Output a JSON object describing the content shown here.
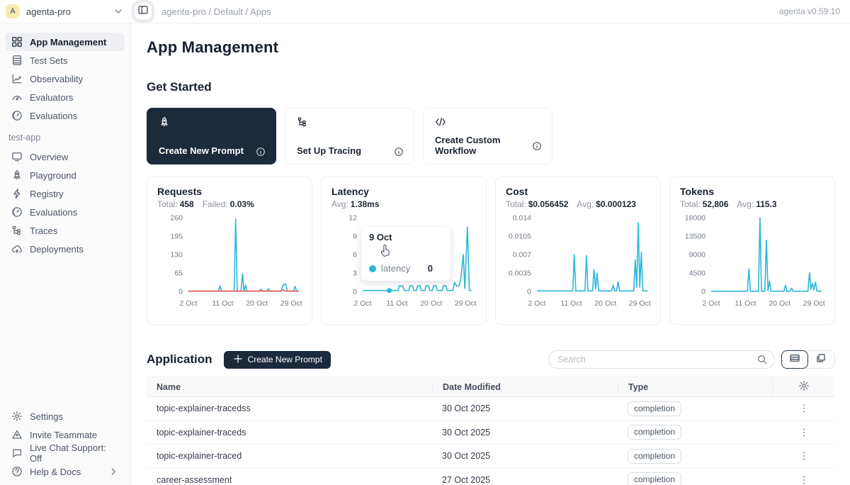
{
  "colors": {
    "accent_dark": "#1b2b3b",
    "line_blue": "#2bb7d9",
    "line_red": "#f4564e",
    "avatar_bg": "#f6ecae"
  },
  "header": {
    "avatar_letter": "A",
    "workspace": "agenta-pro",
    "breadcrumb": "agenta-pro / Default / Apps",
    "version": "agenta v0.59.10"
  },
  "sidebar": {
    "main_items": [
      {
        "label": "App Management",
        "icon": "grid-icon",
        "selected": true
      },
      {
        "label": "Test Sets",
        "icon": "table-icon"
      },
      {
        "label": "Observability",
        "icon": "chart-line-icon"
      },
      {
        "label": "Evaluators",
        "icon": "gauge-icon"
      },
      {
        "label": "Evaluations",
        "icon": "speedometer-icon"
      }
    ],
    "project_label": "test-app",
    "project_items": [
      {
        "label": "Overview",
        "icon": "monitor-icon"
      },
      {
        "label": "Playground",
        "icon": "rocket-icon"
      },
      {
        "label": "Registry",
        "icon": "zap-icon"
      },
      {
        "label": "Evaluations",
        "icon": "speedometer-icon"
      },
      {
        "label": "Traces",
        "icon": "trace-tree-icon"
      },
      {
        "label": "Deployments",
        "icon": "cloud-upload-icon"
      }
    ],
    "footer_items": [
      {
        "label": "Settings",
        "icon": "gear-icon"
      },
      {
        "label": "Invite Teammate",
        "icon": "invite-icon"
      },
      {
        "label": "Live Chat Support: Off",
        "icon": "chat-icon"
      },
      {
        "label": "Help & Docs",
        "icon": "help-circle-icon",
        "chevron": true
      }
    ]
  },
  "main": {
    "page_title": "App Management",
    "get_started": {
      "title": "Get Started",
      "cards": [
        {
          "label": "Create New Prompt",
          "icon": "rocket-icon",
          "variant": "dark"
        },
        {
          "label": "Set Up Tracing",
          "icon": "trace-tree-icon",
          "variant": "light"
        },
        {
          "label": "Create Custom Workflow",
          "icon": "code-icon",
          "variant": "light"
        }
      ]
    },
    "application": {
      "title": "Application",
      "create_button_label": "Create New Prompt",
      "search_placeholder": "Search",
      "view_toggle": [
        "table-view",
        "card-view"
      ],
      "table": {
        "columns": [
          "Name",
          "Date Modified",
          "Type"
        ],
        "rows": [
          {
            "name": "topic-explainer-tracedss",
            "date": "30 Oct 2025",
            "type": "completion"
          },
          {
            "name": "topic-explainer-traceds",
            "date": "30 Oct 2025",
            "type": "completion"
          },
          {
            "name": "topic-explainer-traced",
            "date": "30 Oct 2025",
            "type": "completion"
          },
          {
            "name": "career-assessment",
            "date": "27 Oct 2025",
            "type": "completion"
          }
        ]
      }
    }
  },
  "chart_data": [
    {
      "type": "line",
      "title": "Requests",
      "stats": [
        {
          "label": "Total:",
          "value": "458"
        },
        {
          "label": "Failed:",
          "value": "0.03%"
        }
      ],
      "xlim": [
        0,
        29
      ],
      "ylim": [
        0,
        260
      ],
      "yticks": [
        0,
        65,
        130,
        195,
        260
      ],
      "xticks": [
        {
          "label": "2 Oct",
          "x": 0
        },
        {
          "label": "11 Oct",
          "x": 9
        },
        {
          "label": "20 Oct",
          "x": 18
        },
        {
          "label": "29 Oct",
          "x": 27
        }
      ],
      "grid": false,
      "legend": "none",
      "series": [
        {
          "name": "requests",
          "color": "#2bb7d9",
          "points": [
            [
              0,
              1
            ],
            [
              7.9,
              1
            ],
            [
              8.3,
              20
            ],
            [
              8.7,
              1
            ],
            [
              12.0,
              1
            ],
            [
              12.4,
              255
            ],
            [
              12.8,
              1
            ],
            [
              13.8,
              1
            ],
            [
              14.2,
              62
            ],
            [
              14.6,
              1
            ],
            [
              15.0,
              22
            ],
            [
              15.4,
              1
            ],
            [
              18.6,
              1
            ],
            [
              19.0,
              8
            ],
            [
              19.4,
              1
            ],
            [
              20.6,
              1
            ],
            [
              21.0,
              10
            ],
            [
              21.4,
              1
            ],
            [
              24.3,
              1
            ],
            [
              24.8,
              22
            ],
            [
              25.5,
              26
            ],
            [
              26.0,
              1
            ],
            [
              27.6,
              1
            ],
            [
              28.0,
              18
            ],
            [
              28.4,
              1
            ],
            [
              29,
              1
            ]
          ]
        },
        {
          "name": "failed",
          "color": "#f4564e",
          "points": [
            [
              0,
              1
            ],
            [
              24.3,
              1
            ],
            [
              24.8,
              6
            ],
            [
              25.4,
              1
            ],
            [
              29,
              1
            ]
          ]
        }
      ]
    },
    {
      "type": "line",
      "title": "Latency",
      "stats": [
        {
          "label": "Avg:",
          "value": "1.38ms"
        }
      ],
      "xlim": [
        0,
        29
      ],
      "ylim": [
        0,
        12
      ],
      "yticks": [
        0,
        3,
        6,
        9,
        12
      ],
      "xticks": [
        {
          "label": "2 Oct",
          "x": 0
        },
        {
          "label": "11 Oct",
          "x": 9
        },
        {
          "label": "20 Oct",
          "x": 18
        },
        {
          "label": "29 Oct",
          "x": 27
        }
      ],
      "grid": false,
      "legend": "none",
      "marker": {
        "x": 7,
        "y": 0.15,
        "color": "#2bb7d9"
      },
      "tooltip": {
        "title": "9 Oct",
        "series": "latency",
        "value": "0"
      },
      "series": [
        {
          "name": "latency",
          "color": "#2bb7d9",
          "points": [
            [
              0,
              0.15
            ],
            [
              9.3,
              0.15
            ],
            [
              9.6,
              0.9
            ],
            [
              10.6,
              0.9
            ],
            [
              10.9,
              0.15
            ],
            [
              12.1,
              0.15
            ],
            [
              12.4,
              0.9
            ],
            [
              13.1,
              0.9
            ],
            [
              13.4,
              0.15
            ],
            [
              14.1,
              0.15
            ],
            [
              14.4,
              0.9
            ],
            [
              15.1,
              0.9
            ],
            [
              15.4,
              0.15
            ],
            [
              16.3,
              0.15
            ],
            [
              16.6,
              0.9
            ],
            [
              17.3,
              0.9
            ],
            [
              17.6,
              0.15
            ],
            [
              18.3,
              0.15
            ],
            [
              18.6,
              0.9
            ],
            [
              19.3,
              0.9
            ],
            [
              19.6,
              0.15
            ],
            [
              20.9,
              0.15
            ],
            [
              21.2,
              0.9
            ],
            [
              21.9,
              0.9
            ],
            [
              22.2,
              0.15
            ],
            [
              23.7,
              0.15
            ],
            [
              24.1,
              1.5
            ],
            [
              24.6,
              0.9
            ],
            [
              25.3,
              0.9
            ],
            [
              25.8,
              2.2
            ],
            [
              26.4,
              6
            ],
            [
              26.8,
              0.5
            ],
            [
              27.5,
              10.5
            ],
            [
              28.0,
              0.15
            ],
            [
              28.6,
              0.15
            ]
          ]
        }
      ]
    },
    {
      "type": "line",
      "title": "Cost",
      "stats": [
        {
          "label": "Total:",
          "value": "$0.056452"
        },
        {
          "label": "Avg:",
          "value": "$0.000123"
        }
      ],
      "xlim": [
        0,
        29
      ],
      "ylim": [
        0,
        0.014
      ],
      "yticks": [
        0,
        0.0035,
        0.007,
        0.0105,
        0.014
      ],
      "xticks": [
        {
          "label": "2 Oct",
          "x": 0
        },
        {
          "label": "11 Oct",
          "x": 9
        },
        {
          "label": "20 Oct",
          "x": 18
        },
        {
          "label": "29 Oct",
          "x": 27
        }
      ],
      "grid": false,
      "legend": "none",
      "series": [
        {
          "name": "cost",
          "color": "#2bb7d9",
          "points": [
            [
              0,
              0.0001
            ],
            [
              9.4,
              0.0001
            ],
            [
              9.8,
              0.007
            ],
            [
              10.2,
              0.0001
            ],
            [
              12.6,
              0.0001
            ],
            [
              13.0,
              0.0068
            ],
            [
              13.4,
              0.0001
            ],
            [
              14.6,
              0.0001
            ],
            [
              15.0,
              0.0042
            ],
            [
              15.4,
              0.0004
            ],
            [
              15.8,
              0.0035
            ],
            [
              16.2,
              0.0001
            ],
            [
              19.6,
              0.0001
            ],
            [
              20.0,
              0.0012
            ],
            [
              20.4,
              0.0001
            ],
            [
              20.9,
              0.0001
            ],
            [
              21.3,
              0.0018
            ],
            [
              21.7,
              0.0001
            ],
            [
              25.4,
              0.0001
            ],
            [
              25.8,
              0.006
            ],
            [
              26.2,
              0.0008
            ],
            [
              26.6,
              0.013
            ],
            [
              27.0,
              0.0008
            ],
            [
              27.4,
              0.0075
            ],
            [
              27.8,
              0.0001
            ],
            [
              29,
              0.0001
            ]
          ]
        }
      ]
    },
    {
      "type": "line",
      "title": "Tokens",
      "stats": [
        {
          "label": "Total:",
          "value": "52,806"
        },
        {
          "label": "Avg:",
          "value": "115.3"
        }
      ],
      "xlim": [
        0,
        29
      ],
      "ylim": [
        0,
        18000
      ],
      "yticks": [
        0,
        4500,
        9000,
        13500,
        18000
      ],
      "xticks": [
        {
          "label": "2 Oct",
          "x": 0
        },
        {
          "label": "11 Oct",
          "x": 9
        },
        {
          "label": "20 Oct",
          "x": 18
        },
        {
          "label": "29 Oct",
          "x": 27
        }
      ],
      "grid": false,
      "legend": "none",
      "series": [
        {
          "name": "tokens",
          "color": "#2bb7d9",
          "points": [
            [
              0,
              50
            ],
            [
              9.5,
              50
            ],
            [
              9.9,
              5500
            ],
            [
              10.3,
              50
            ],
            [
              12.4,
              50
            ],
            [
              12.8,
              18000
            ],
            [
              13.2,
              50
            ],
            [
              14.1,
              50
            ],
            [
              14.5,
              12500
            ],
            [
              14.9,
              150
            ],
            [
              15.3,
              2500
            ],
            [
              15.7,
              50
            ],
            [
              19.1,
              50
            ],
            [
              19.5,
              1500
            ],
            [
              19.9,
              50
            ],
            [
              20.7,
              50
            ],
            [
              21.1,
              800
            ],
            [
              21.5,
              50
            ],
            [
              25.4,
              50
            ],
            [
              25.8,
              4600
            ],
            [
              26.2,
              500
            ],
            [
              26.6,
              2000
            ],
            [
              27.0,
              400
            ],
            [
              27.4,
              2300
            ],
            [
              27.8,
              50
            ],
            [
              29,
              50
            ]
          ]
        }
      ]
    }
  ]
}
